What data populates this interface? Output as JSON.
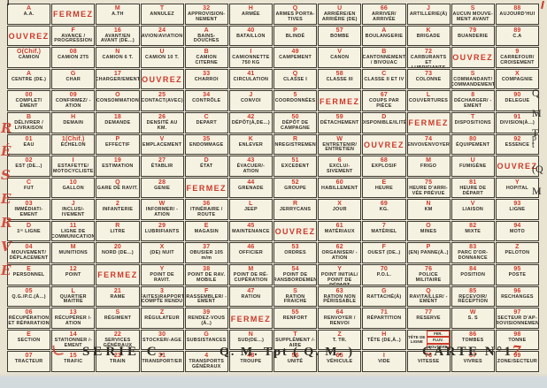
{
  "card": {
    "colors": {
      "red": "#cd3929",
      "ink": "#2e2c25",
      "paper": "#e9e3d2",
      "cell": "#f6f2e2"
    },
    "footer": {
      "serie": "SERIE  C.",
      "qm": "Q. M.  Tpt     ( Q. M. )",
      "carte_prefix": "CARTE  N°1",
      "carte_red": "7"
    },
    "margin_left_letters": [
      "R",
      "É",
      "S",
      "E",
      "R",
      "V",
      "É"
    ],
    "margin_right_letters": [
      "Q",
      "M",
      "T",
      "p",
      "t",
      "(Q",
      "M"
    ],
    "mark_top_left": "I",
    "grid": {
      "rows": [
        [
          {
            "c": "A",
            "t": "A.A."
          },
          {
            "w": "FERMEZ"
          },
          {
            "c": "M",
            "t": "A.TH"
          },
          {
            "c": "T",
            "t": "ANNULEZ"
          },
          {
            "c": "32",
            "t": "APPROVISION- NEMENT"
          },
          {
            "c": "H",
            "t": "ARMÉE"
          },
          {
            "c": "Q",
            "t": "ARMES PORTA- TIVES"
          },
          {
            "c": "U",
            "t": "ARRIÈRE/EN ARRIÈRE (DE)"
          },
          {
            "c": "66",
            "t": "ARRIVER/ ARRIVÉE"
          },
          {
            "c": "J",
            "t": "ARTILLERIE(À)"
          },
          {
            "c": "S",
            "t": "AUCUN MOUVE- MENT AVANT"
          },
          {
            "c": "88",
            "t": "AUJOURD'HUI"
          }
        ],
        [
          {
            "w": "OUVREZ"
          },
          {
            "c": "F",
            "t": "AVANCE / PROGRESSION"
          },
          {
            "c": "16",
            "t": "AVANT/EN AVANT (DE...)"
          },
          {
            "c": "24",
            "t": "AVION/AVIATION"
          },
          {
            "c": "A",
            "t": "BAINS-DOUCHES"
          },
          {
            "c": "40",
            "t": "BATAILLON"
          },
          {
            "c": "P",
            "t": "BLINDÉ"
          },
          {
            "c": "57",
            "t": "BOMBE"
          },
          {
            "c": "A",
            "t": "BOULANGERIE"
          },
          {
            "c": "K",
            "t": "BRIGADE"
          },
          {
            "c": "79",
            "t": "BUANDERIE"
          },
          {
            "c": "89",
            "t": "C.A"
          }
        ],
        [
          {
            "c": "O(Chif.)",
            "t": "CAMION"
          },
          {
            "c": "08",
            "t": "CAMION 2T5"
          },
          {
            "c": "N",
            "t": "CAMION 6 T."
          },
          {
            "c": "U",
            "t": "CAMION 10 T."
          },
          {
            "c": "B",
            "t": "CAMION CITERNE"
          },
          {
            "c": "I",
            "t": "CAMIONNETTE 750 KG"
          },
          {
            "c": "49",
            "t": "CAMPEMENT"
          },
          {
            "c": "V",
            "t": "CANON"
          },
          {
            "c": "B",
            "t": "CANTONNEMENT / BIVOUAC"
          },
          {
            "c": "72",
            "t": "CARBURANTS ET LUBRIFIANTS"
          },
          {
            "w": "OUVREZ"
          },
          {
            "c": "9",
            "t": "CARREFOUR/ CROISEMENT"
          }
        ],
        [
          {
            "c": "A",
            "t": "CENTRE (DE.)"
          },
          {
            "c": "G",
            "t": "CHAR"
          },
          {
            "c": "17",
            "t": "CHARGER/EMENT"
          },
          {
            "w": "OUVREZ"
          },
          {
            "c": "33",
            "t": "CHARROI"
          },
          {
            "c": "41",
            "t": "CIRCULATION"
          },
          {
            "c": "Q",
            "t": "CLASSE I"
          },
          {
            "c": "58",
            "t": "CLASSE III"
          },
          {
            "c": "C",
            "t": "CLASSE II ET IV"
          },
          {
            "c": "73",
            "t": "COLONNE"
          },
          {
            "c": "S",
            "t": "COMMANDANT/ COMMANDEMENT"
          },
          {
            "c": "X",
            "t": "COMPAGNIE"
          }
        ],
        [
          {
            "c": "00",
            "t": "COMPLET/ÉMENT"
          },
          {
            "c": "09",
            "t": "CONFIRMEZ/ -ATION"
          },
          {
            "c": "O",
            "t": "CONSOMMATION"
          },
          {
            "c": "25",
            "t": "CONTACT(AVEC)"
          },
          {
            "c": "34",
            "t": "CONTRÔLE"
          },
          {
            "c": "J",
            "t": "CONVOI"
          },
          {
            "c": "5",
            "t": "COORDONNÉES"
          },
          {
            "w": "FERMEZ"
          },
          {
            "c": "67",
            "t": "COUPS PAR PIÈCE"
          },
          {
            "c": "L",
            "t": "COUVERTURES"
          },
          {
            "c": "8",
            "t": "DÉCHARGER/ -EMENT"
          },
          {
            "c": "90",
            "t": "DELEGUE"
          }
        ],
        [
          {
            "c": "B",
            "t": "DÉLIVRER / LIVRAISON"
          },
          {
            "c": "H",
            "t": "DEMAIN"
          },
          {
            "c": "18",
            "t": "DEMANDE"
          },
          {
            "c": "26",
            "t": "DENSITÉ AU KM."
          },
          {
            "c": "C",
            "t": "DEPART"
          },
          {
            "c": "42",
            "t": "DÉPÔT(À,DE...)"
          },
          {
            "c": "50",
            "t": "DÉPÔT DE CAMPAGNE"
          },
          {
            "c": "59",
            "t": "DÉTACHEMENT"
          },
          {
            "c": "D",
            "t": "DISPONIBLE/ILITÉ"
          },
          {
            "w": "FERMEZ"
          },
          {
            "c": "T",
            "t": "DISPOSITIONS"
          },
          {
            "c": "91",
            "t": "DIVISION(À...)"
          }
        ],
        [
          {
            "c": "01",
            "t": "EAU"
          },
          {
            "c": "1(Chif.)",
            "t": "ÉCHELON"
          },
          {
            "c": "P",
            "t": "EFFECTIF"
          },
          {
            "c": "V",
            "t": "EMPLACEMENT"
          },
          {
            "c": "35",
            "t": "ENDOMMAGE"
          },
          {
            "c": "K",
            "t": "ENLEVER"
          },
          {
            "c": "R",
            "t": "ENREGISTREMENT"
          },
          {
            "c": "W",
            "t": "ENTRETENIR/ ENTRETIEN"
          },
          {
            "w": "OUVREZ"
          },
          {
            "c": "74",
            "t": "ENVOI/ENVOYER"
          },
          {
            "c": "80",
            "t": "ÉQUIPEMENT"
          },
          {
            "c": "92",
            "t": "ESSENCE"
          }
        ],
        [
          {
            "c": "02",
            "t": "EST (DE...)"
          },
          {
            "c": "I",
            "t": "ESTAFETTE/ MOTOCYCLISTE"
          },
          {
            "c": "19",
            "t": "ESTIMATION"
          },
          {
            "c": "27",
            "t": "ÉTABLIR"
          },
          {
            "c": "D",
            "t": "ÉTAT"
          },
          {
            "c": "43",
            "t": "ÉVACUER/-ATION"
          },
          {
            "c": "51",
            "t": "EXCEDENT"
          },
          {
            "c": "6",
            "t": "EXCLU/-SIVEMENT"
          },
          {
            "c": "68",
            "t": "EXPLOSIF"
          },
          {
            "c": "M",
            "t": "FRIGO"
          },
          {
            "c": "U",
            "t": "FUMIGÈNE"
          },
          {
            "w": "OUVREZ"
          }
        ],
        [
          {
            "c": "C",
            "t": "FUT"
          },
          {
            "c": "10",
            "t": "GALLON"
          },
          {
            "c": "Q",
            "t": "GARE DE RAVIT."
          },
          {
            "c": "28",
            "t": "GENIE"
          },
          {
            "w": "FERMEZ"
          },
          {
            "c": "44",
            "t": "GRENADE"
          },
          {
            "c": "52",
            "t": "GROUPE"
          },
          {
            "c": "60",
            "t": "HABILLEMENT"
          },
          {
            "c": "E",
            "t": "HEURE"
          },
          {
            "c": "75",
            "t": "HEURE D'ARRI- VÉE PRÉVUE"
          },
          {
            "c": "81",
            "t": "HEURE DE DÉPART"
          },
          {
            "c": "Y",
            "t": "HOPITAL"
          }
        ],
        [
          {
            "c": "03",
            "t": "IMMÉDIAT/- EMENT"
          },
          {
            "c": "J",
            "t": "INCLUS/-IVEMENT"
          },
          {
            "c": "2",
            "t": "INFANTERIE"
          },
          {
            "c": "W",
            "t": "INFORMER/ -ATION"
          },
          {
            "c": "36",
            "t": "ITINÉRAIRE / ROUTE"
          },
          {
            "c": "L",
            "t": "JEEP"
          },
          {
            "c": "R",
            "t": "JERRYCANS"
          },
          {
            "c": "X",
            "t": "JOUR"
          },
          {
            "c": "69",
            "t": "KG."
          },
          {
            "c": "N",
            "t": "KM"
          },
          {
            "c": "V",
            "t": "LIAISON"
          },
          {
            "c": "93",
            "t": "LIGNE"
          }
        ],
        [
          {
            "c": "D",
            "t": "1ʳᵉ LIGNE"
          },
          {
            "c": "11",
            "t": "LIGNE DE COMMUNICATION"
          },
          {
            "c": "R",
            "t": "LITRE"
          },
          {
            "c": "29",
            "t": "LUBRIFIANTS"
          },
          {
            "c": "E",
            "t": "MAGASIN"
          },
          {
            "c": "45",
            "t": "MAINTENANCE"
          },
          {
            "w": "OUVREZ"
          },
          {
            "c": "61",
            "t": "MATÉRIAUX"
          },
          {
            "c": "7",
            "t": "MATÉRIEL"
          },
          {
            "c": "O",
            "t": "MINES"
          },
          {
            "c": "82",
            "t": "MIXTE"
          },
          {
            "c": "94",
            "t": "MOTO"
          }
        ],
        [
          {
            "c": "04",
            "t": "MOUVEMENT/ DÉPLACEMENT"
          },
          {
            "c": "M",
            "t": "MUNITIONS"
          },
          {
            "c": "20",
            "t": "NORD (DE...)"
          },
          {
            "c": "X",
            "t": "(DE) NUIT"
          },
          {
            "c": "37",
            "t": "OBUSIER 105 m/m"
          },
          {
            "c": "46",
            "t": "OFFICIER"
          },
          {
            "c": "53",
            "t": "ORDRES"
          },
          {
            "c": "62",
            "t": "ORGANISER/ -ATION"
          },
          {
            "c": "F",
            "t": "OUEST (DE..)"
          },
          {
            "c": "P",
            "t": "(EN) PANNE(À..)"
          },
          {
            "c": "83",
            "t": "PARC D'OR- DONNANCE"
          },
          {
            "c": "Z",
            "t": "PELOTON"
          }
        ],
        [
          {
            "c": "E",
            "t": "PERSONNEL"
          },
          {
            "c": "12",
            "t": "POINT"
          },
          {
            "w": "FERMEZ"
          },
          {
            "c": "Y",
            "t": "POINT DE RAVIT."
          },
          {
            "c": "38",
            "t": "POINT DE RAV. MOBILE"
          },
          {
            "c": "M",
            "t": "POINT DE RÉ- CUPÉRATION"
          },
          {
            "c": "54",
            "t": "POINT DE TRANSBORDEMENT"
          },
          {
            "c": "Y",
            "t": "POINT INITIAL/ POINT DE DÉPART"
          },
          {
            "c": "70",
            "t": "P.O.L."
          },
          {
            "c": "76",
            "t": "POLICE MILITAIRE"
          },
          {
            "c": "84",
            "t": "POSITION"
          },
          {
            "c": "95",
            "t": "POSTE"
          }
        ],
        [
          {
            "c": "05",
            "t": "Q.G./P.C.(À...)"
          },
          {
            "c": "L",
            "t": "QUARTIER MAITRE"
          },
          {
            "c": "21",
            "t": "RAME"
          },
          {
            "c": "3",
            "t": "(FAITES)RAPPORT/ COMPTE RENDU"
          },
          {
            "c": "F",
            "t": "RASSEMBLER/ -EMENT"
          },
          {
            "c": "47",
            "t": "RATION"
          },
          {
            "c": "S",
            "t": "RATION FRAICHE"
          },
          {
            "c": "63",
            "t": "RATION NON PÉRISSABLE"
          },
          {
            "c": "G",
            "t": "RATTACHÉ(À)"
          },
          {
            "c": "Q",
            "t": "RAVITAILLER/ -EMENT"
          },
          {
            "c": "85",
            "t": "RECEVOIR/ RÉCEPTION"
          },
          {
            "c": "96",
            "t": "RECHANGES"
          }
        ],
        [
          {
            "c": "06",
            "t": "RÉCUPÉRATION ET RÉPARATION"
          },
          {
            "c": "13",
            "t": "RÉCUPÉRER /-ATION"
          },
          {
            "c": "S",
            "t": "RÉGIMENT"
          },
          {
            "c": "Z",
            "t": "RÉGULATEUR"
          },
          {
            "c": "39",
            "t": "RENDEZ-VOUS (À..)"
          },
          {
            "w": "FERMEZ"
          },
          {
            "c": "55",
            "t": "RENFORT"
          },
          {
            "c": "64",
            "t": "RENVOYER / RENVOI"
          },
          {
            "c": "71",
            "t": "RÉPARTITION"
          },
          {
            "c": "77",
            "t": "RESERVE"
          },
          {
            "c": "W",
            "t": "S. S"
          },
          {
            "c": "97",
            "t": "SECTEUR D'AP- PROVISIONNEMENT"
          }
        ],
        [
          {
            "c": "E",
            "t": "SECTION"
          },
          {
            "c": "14",
            "t": "STATIONNER /-EMENT"
          },
          {
            "c": "22",
            "t": "SERVICES GÉNÉRAUX"
          },
          {
            "c": "30",
            "t": "STOCKER/-AGE"
          },
          {
            "c": "G",
            "t": "SUBSISTANCES"
          },
          {
            "c": "N",
            "t": "SUD(DE...)"
          },
          {
            "c": "T",
            "t": "SUPPLÉMENT /-AIRE"
          },
          {
            "c": "Z",
            "t": "T. TR."
          },
          {
            "c": "H",
            "t": "TÊTE (DE,À..)"
          },
          {
            "split": {
              "left": "TÊTE DE LIGNE",
              "right": [
                "FER.",
                "FLUV.",
                "ROUTIÈRE"
              ]
            }
          },
          {
            "c": "86",
            "t": "TOMBES"
          },
          {
            "c": "98",
            "t": "TONNE"
          }
        ],
        [
          {
            "c": "07",
            "t": "TRACTEUR"
          },
          {
            "c": "15",
            "t": "TRAFIC"
          },
          {
            "c": "23",
            "t": "TRAIN"
          },
          {
            "c": "31",
            "t": "TRANSPORT/ER"
          },
          {
            "c": "4",
            "t": "TRANSPORTS GÉNÉRAUX"
          },
          {
            "c": "48",
            "t": "TROUPE"
          },
          {
            "c": "56",
            "t": "UNITÉ"
          },
          {
            "c": "65",
            "t": "VÉHICULE"
          },
          {
            "c": "I",
            "t": "VIDE"
          },
          {
            "c": "78",
            "t": "VITESSE"
          },
          {
            "c": "87",
            "t": "VIVRES"
          },
          {
            "c": "99",
            "t": "ZONE/SECTEUR"
          }
        ]
      ]
    }
  }
}
